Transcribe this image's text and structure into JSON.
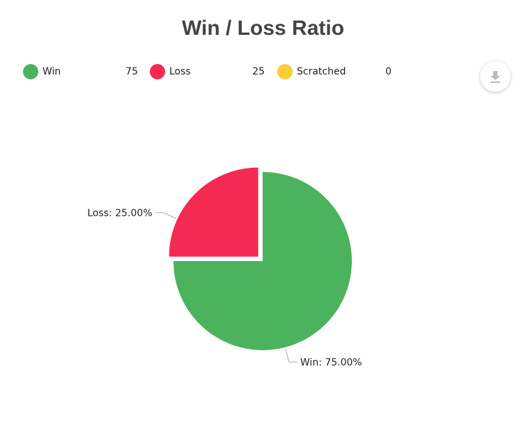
{
  "chart_data": {
    "type": "pie",
    "title": "Win / Loss Ratio",
    "categories": [
      "Win",
      "Loss",
      "Scratched"
    ],
    "values": [
      75,
      25,
      0
    ],
    "colors": [
      "#4bb35d",
      "#f42a53",
      "#f9cd38"
    ],
    "slice_labels": [
      "Win: 75.00%",
      "Loss: 25.00%",
      ""
    ],
    "legend_placement": "top"
  },
  "legend": [
    {
      "label": "Win",
      "value": "75",
      "color": "#4bb35d"
    },
    {
      "label": "Loss",
      "value": "25",
      "color": "#f42a53"
    },
    {
      "label": "Scratched",
      "value": "0",
      "color": "#f9cd38"
    }
  ],
  "toolbar": {
    "download_icon": "download-icon"
  }
}
